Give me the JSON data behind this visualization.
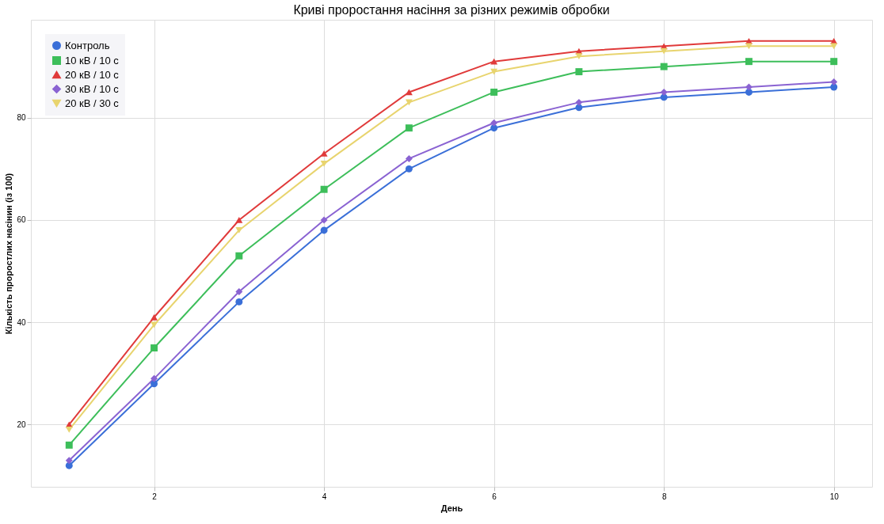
{
  "chart_data": {
    "type": "line",
    "title": "Криві проростання насіння за різних режимів обробки",
    "xlabel": "День",
    "ylabel": "Кількість проростлих насінин (із 100)",
    "x": [
      1,
      2,
      3,
      4,
      5,
      6,
      7,
      8,
      9,
      10
    ],
    "series": [
      {
        "name": "Контроль",
        "color": "#3a6fd8",
        "marker": "circle",
        "values": [
          12,
          28,
          44,
          58,
          70,
          78,
          82,
          84,
          85,
          86
        ]
      },
      {
        "name": "10 кВ / 10 с",
        "color": "#3dbe5a",
        "marker": "square",
        "values": [
          16,
          35,
          53,
          66,
          78,
          85,
          89,
          90,
          91,
          91
        ]
      },
      {
        "name": "20 кВ / 10 с",
        "color": "#e03a3a",
        "marker": "triangle",
        "values": [
          20,
          41,
          60,
          73,
          85,
          91,
          93,
          94,
          95,
          95
        ]
      },
      {
        "name": "30 кВ / 10 с",
        "color": "#8a63d2",
        "marker": "diamond",
        "values": [
          13,
          29,
          46,
          60,
          72,
          79,
          83,
          85,
          86,
          87
        ]
      },
      {
        "name": "20 кВ / 30 с",
        "color": "#e8d46e",
        "marker": "triangle-down",
        "values": [
          19,
          39.5,
          58,
          71,
          83,
          89,
          92,
          93,
          94,
          94
        ]
      }
    ],
    "xlim": [
      0.55,
      10.45
    ],
    "ylim": [
      7.85,
      99.15
    ],
    "xticks": [
      2,
      4,
      6,
      8,
      10
    ],
    "yticks": [
      20,
      40,
      60,
      80
    ],
    "grid": true,
    "legend": "top left",
    "line_style": "solid"
  }
}
